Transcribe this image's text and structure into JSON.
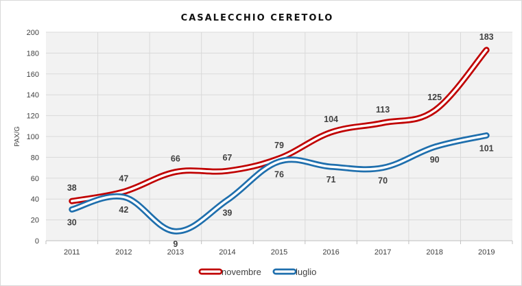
{
  "chart_data": {
    "type": "line",
    "title": "CASALECCHIO CERETOLO",
    "xlabel": "",
    "ylabel": "PAX/G",
    "ylim": [
      0,
      200
    ],
    "yticks": [
      "0",
      "20",
      "40",
      "60",
      "80",
      "100",
      "120",
      "140",
      "160",
      "180",
      "200"
    ],
    "categories": [
      "2011",
      "2012",
      "2013",
      "2014",
      "2015",
      "2016",
      "2017",
      "2018",
      "2019"
    ],
    "grid": true,
    "legend_position": "bottom",
    "series": [
      {
        "name": "novembre",
        "color": "#c00000",
        "values": [
          38,
          47,
          66,
          67,
          79,
          104,
          113,
          125,
          183
        ],
        "labels": [
          "38",
          "47",
          "66",
          "67",
          "79",
          "104",
          "113",
          "125",
          "183"
        ],
        "label_position": "above"
      },
      {
        "name": "luglio",
        "color": "#1f6fad",
        "values": [
          30,
          42,
          9,
          39,
          76,
          71,
          70,
          90,
          101
        ],
        "labels": [
          "30",
          "42",
          "9",
          "39",
          "76",
          "71",
          "70",
          "90",
          "101"
        ],
        "label_position": "below"
      }
    ]
  }
}
